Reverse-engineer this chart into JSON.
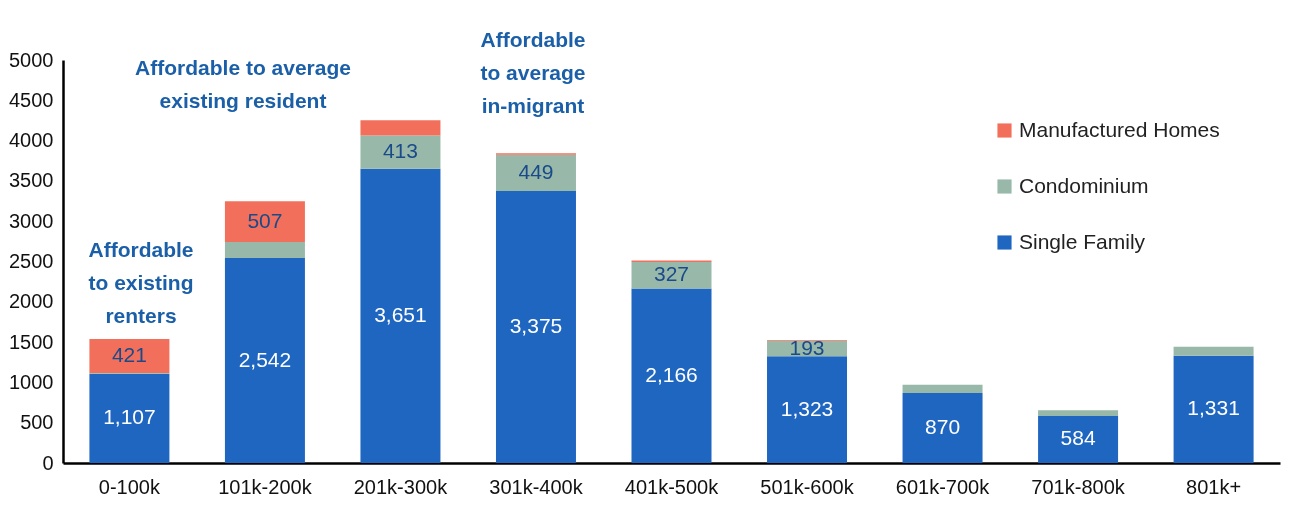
{
  "chart_data": {
    "type": "bar",
    "stacked": true,
    "categories": [
      "0-100k",
      "101k-200k",
      "201k-300k",
      "301k-400k",
      "401k-500k",
      "501k-600k",
      "601k-700k",
      "701k-800k",
      "801k+"
    ],
    "series": [
      {
        "name": "Single Family",
        "color": "#1f66c1",
        "values": [
          1107,
          2542,
          3651,
          3375,
          2166,
          1323,
          870,
          584,
          1331
        ],
        "value_labels": [
          "1,107",
          "2,542",
          "3,651",
          "3,375",
          "2,166",
          "1,323",
          "870",
          "584",
          "1,331"
        ]
      },
      {
        "name": "Condominium",
        "color": "#98b9a9",
        "values": [
          10,
          200,
          413,
          449,
          327,
          193,
          100,
          70,
          110
        ],
        "value_labels": [
          null,
          null,
          "413",
          "449",
          "327",
          "193",
          null,
          null,
          null
        ]
      },
      {
        "name": "Manufactured Homes",
        "color": "#f2705b",
        "values": [
          421,
          507,
          190,
          20,
          20,
          10,
          null,
          null,
          null
        ],
        "value_labels": [
          "421",
          "507",
          null,
          null,
          null,
          null,
          null,
          null,
          null
        ]
      }
    ],
    "ylim": [
      0,
      5000
    ],
    "yticks": [
      0,
      500,
      {
        "value": 1000,
        "label": "1000"
      },
      {
        "value": 1500,
        "label": "1500"
      },
      {
        "value": 2000,
        "label": "2000"
      },
      {
        "value": 2500,
        "label": "2500"
      },
      {
        "value": 3000,
        "label": "3000"
      },
      {
        "value": 3500,
        "label": "3500"
      },
      {
        "value": 4000,
        "label": "4000"
      },
      {
        "value": 4500,
        "label": "4500"
      },
      {
        "value": 5000,
        "label": "5000"
      }
    ],
    "grid": false,
    "legend": "top right",
    "annotations": [
      "Affordable\nto existing\nrenters",
      "Affordable to average\nexisting resident",
      "Affordable\nto average\nin-migrant"
    ]
  }
}
